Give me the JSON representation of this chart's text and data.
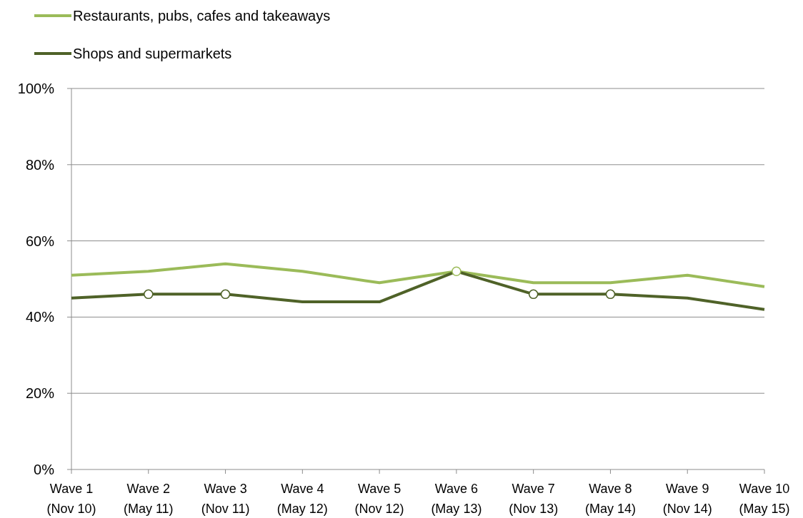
{
  "chart_data": {
    "type": "line",
    "categories": [
      "Wave 1\n(Nov 10)",
      "Wave 2\n(May 11)",
      "Wave 3\n(Nov 11)",
      "Wave 4\n(May 12)",
      "Wave 5\n(Nov 12)",
      "Wave 6\n(May 13)",
      "Wave 7\n(Nov 13)",
      "Wave 8\n(May 14)",
      "Wave 9\n(Nov 14)",
      "Wave 10\n(May 15)"
    ],
    "series": [
      {
        "name": "Restaurants, pubs, cafes and takeaways",
        "color": "#9bbb59",
        "values": [
          51,
          52,
          54,
          52,
          49,
          52,
          49,
          49,
          51,
          48
        ]
      },
      {
        "name": "Shops and supermarkets",
        "color": "#4f6228",
        "values": [
          45,
          46,
          46,
          44,
          44,
          52,
          46,
          46,
          45,
          42
        ]
      },
      {
        "type": "scatter",
        "marker": "circle",
        "color": "#9bbb59",
        "x": [
          "Wave 6\n(May 13)"
        ],
        "values": [
          52
        ]
      },
      {
        "type": "scatter",
        "marker": "circle",
        "color": "#4f6228",
        "x": [
          "Wave 2\n(May 11)",
          "Wave 3\n(Nov 11)",
          "Wave 7\n(Nov 13)",
          "Wave 8\n(May 14)"
        ],
        "values": [
          46,
          46,
          46,
          46
        ]
      }
    ],
    "ylim": [
      0,
      100
    ],
    "yticks": [
      {
        "value": 0,
        "label": "0%"
      },
      {
        "value": 20,
        "label": "20%"
      },
      {
        "value": 40,
        "label": "40%"
      },
      {
        "value": 60,
        "label": "60%"
      },
      {
        "value": 80,
        "label": "80%"
      },
      {
        "value": 100,
        "label": "100%"
      }
    ],
    "grid": "y",
    "legend": "top left",
    "marker": "none",
    "line_style": "solid"
  }
}
